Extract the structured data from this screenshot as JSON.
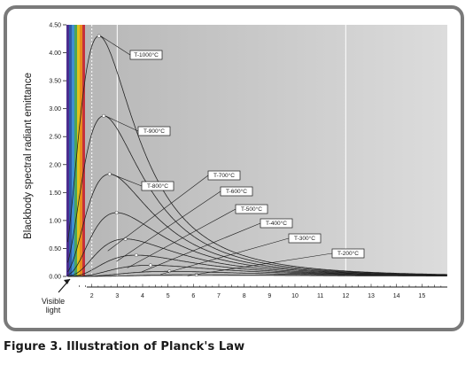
{
  "caption": "Figure 3. Illustration of Planck's Law",
  "chart_data": {
    "type": "line",
    "title": "",
    "ylabel": "Blackbody spectral radiant emittance",
    "xlabel": "",
    "xlim": [
      1,
      16
    ],
    "ylim": [
      0,
      4.5
    ],
    "y_ticks": [
      "0.00",
      "0.50",
      "1.00",
      "1.50",
      "2.00",
      "2.50",
      "3.00",
      "3.50",
      "4.00",
      "4.50"
    ],
    "x_ticks": [
      "2",
      "3",
      "4",
      "5",
      "6",
      "7",
      "8",
      "9",
      "10",
      "11",
      "12",
      "13",
      "14",
      "15"
    ],
    "visible_light_label": [
      "Visible",
      "light"
    ],
    "reference_lines_x": [
      2,
      3,
      12
    ],
    "background": "#c0c0c0",
    "curve_color": "#222222",
    "series": [
      {
        "label": "T-1000°C",
        "peak_x": 2.28,
        "peak_y": 4.3
      },
      {
        "label": "T-900°C",
        "peak_x": 2.47,
        "peak_y": 2.87
      },
      {
        "label": "T-800°C",
        "peak_x": 2.7,
        "peak_y": 1.83
      },
      {
        "label": "T-700°C",
        "peak_x": 2.98,
        "peak_y": 1.14
      },
      {
        "label": "T-600°C",
        "peak_x": 3.32,
        "peak_y": 0.67
      },
      {
        "label": "T-500°C",
        "peak_x": 3.75,
        "peak_y": 0.38
      },
      {
        "label": "T-400°C",
        "peak_x": 4.31,
        "peak_y": 0.2
      },
      {
        "label": "T-300°C",
        "peak_x": 5.06,
        "peak_y": 0.09
      },
      {
        "label": "T-200°C",
        "peak_x": 6.12,
        "peak_y": 0.03
      }
    ]
  }
}
